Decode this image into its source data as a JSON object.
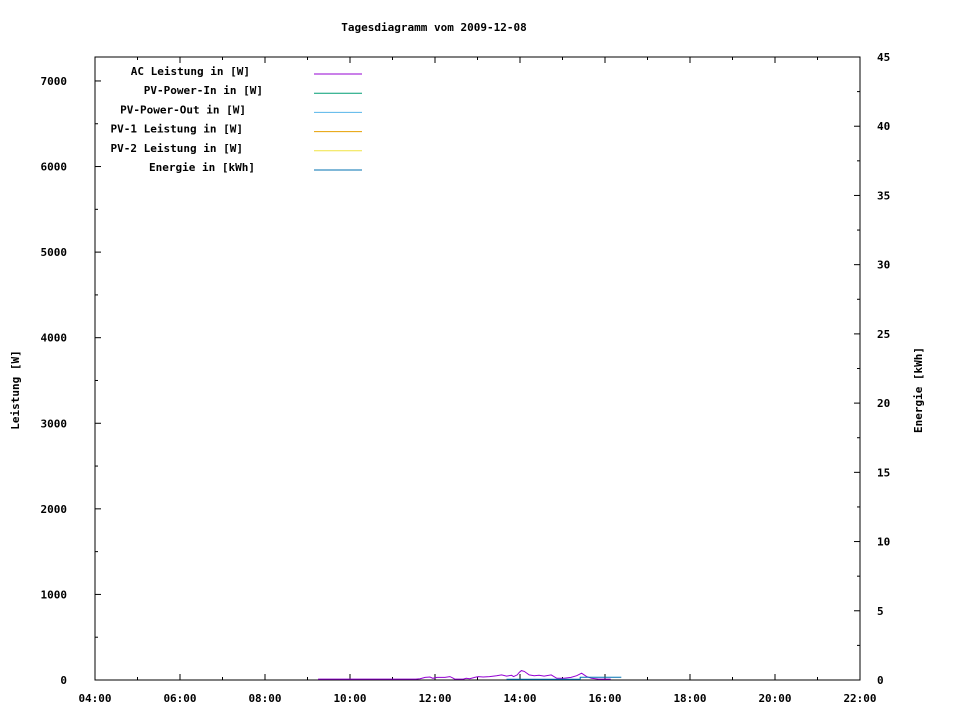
{
  "chart_data": {
    "type": "line",
    "title": "Tagesdiagramm vom 2009-12-08",
    "xlabel": "",
    "ylabel": "Leistung [W]",
    "y2label": "Energie [kWh]",
    "xlim": [
      "04:00",
      "22:00"
    ],
    "ylim": [
      0,
      7280
    ],
    "y2lim": [
      0,
      45
    ],
    "x_ticks": [
      "04:00",
      "06:00",
      "08:00",
      "10:00",
      "12:00",
      "14:00",
      "16:00",
      "18:00",
      "20:00",
      "22:00"
    ],
    "y_ticks": [
      "0",
      "1000",
      "2000",
      "3000",
      "4000",
      "5000",
      "6000",
      "7000"
    ],
    "y2_ticks": [
      "0",
      "5",
      "10",
      "15",
      "20",
      "25",
      "30",
      "35",
      "40",
      "45"
    ],
    "grid": false,
    "legend_position": "top-left",
    "series": [
      {
        "name": "AC Leistung in [W]",
        "color": "#9400d3",
        "axis": "left",
        "points": [
          [
            "09:15",
            10
          ],
          [
            "09:28",
            10
          ],
          [
            "10:54",
            10
          ],
          [
            "11:13",
            10
          ],
          [
            "11:33",
            10
          ],
          [
            "11:39",
            15
          ],
          [
            "11:46",
            30
          ],
          [
            "11:53",
            35
          ],
          [
            "11:57",
            20
          ],
          [
            "12:03",
            30
          ],
          [
            "12:14",
            30
          ],
          [
            "12:21",
            40
          ],
          [
            "12:25",
            25
          ],
          [
            "12:28",
            10
          ],
          [
            "12:40",
            10
          ],
          [
            "12:44",
            20
          ],
          [
            "12:49",
            15
          ],
          [
            "12:56",
            30
          ],
          [
            "13:01",
            40
          ],
          [
            "13:08",
            35
          ],
          [
            "13:17",
            40
          ],
          [
            "13:27",
            50
          ],
          [
            "13:34",
            60
          ],
          [
            "13:41",
            45
          ],
          [
            "13:48",
            55
          ],
          [
            "13:51",
            40
          ],
          [
            "13:56",
            60
          ],
          [
            "13:59",
            90
          ],
          [
            "14:02",
            110
          ],
          [
            "14:06",
            100
          ],
          [
            "14:13",
            60
          ],
          [
            "14:20",
            50
          ],
          [
            "14:27",
            55
          ],
          [
            "14:34",
            45
          ],
          [
            "14:44",
            60
          ],
          [
            "14:52",
            20
          ],
          [
            "15:02",
            20
          ],
          [
            "15:12",
            30
          ],
          [
            "15:20",
            50
          ],
          [
            "15:27",
            80
          ],
          [
            "15:34",
            40
          ],
          [
            "15:41",
            20
          ],
          [
            "15:51",
            10
          ],
          [
            "16:08",
            10
          ]
        ]
      },
      {
        "name": "PV-Power-In in [W]",
        "color": "#009e73",
        "axis": "left",
        "points": []
      },
      {
        "name": "PV-Power-Out in [W]",
        "color": "#56b4e9",
        "axis": "left",
        "points": []
      },
      {
        "name": "PV-1 Leistung in [W]",
        "color": "#e69f00",
        "axis": "left",
        "points": []
      },
      {
        "name": "PV-2 Leistung in [W]",
        "color": "#f0e442",
        "axis": "left",
        "points": []
      },
      {
        "name": "Energie in [kWh]",
        "color": "#0072b2",
        "axis": "right",
        "points": [
          [
            "13:41",
            0.05
          ],
          [
            "15:25",
            0.05
          ],
          [
            "15:25",
            0.2
          ],
          [
            "16:23",
            0.2
          ]
        ]
      }
    ]
  }
}
